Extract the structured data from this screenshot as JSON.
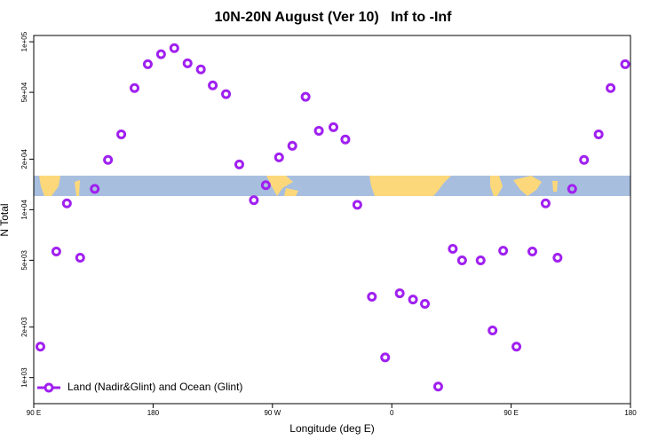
{
  "chart_data": {
    "type": "scatter",
    "title": "10N-20N August (Ver 10)   Inf to -Inf",
    "xlabel": "Longitude (deg E)",
    "ylabel": "N Total",
    "xlim": [
      90,
      540
    ],
    "xticks": [
      {
        "value": 90,
        "label": "90 E"
      },
      180,
      {
        "value": 270,
        "label": "90 W"
      },
      {
        "value": 360,
        "label": "0"
      },
      {
        "value": 450,
        "label": "90 E"
      },
      {
        "value": 540,
        "label": "180"
      }
    ],
    "ylim": [
      700,
      109000
    ],
    "ylog": true,
    "yticks": [
      {
        "value": 1000,
        "label": "1e+03"
      },
      {
        "value": 2000,
        "label": "2e+03"
      },
      {
        "value": 5000,
        "label": "5e+03"
      },
      {
        "value": 10000,
        "label": "1e+04"
      },
      {
        "value": 20000,
        "label": "2e+04"
      },
      {
        "value": 50000,
        "label": "5e+04"
      },
      {
        "value": 100000,
        "label": "1e+05"
      }
    ],
    "legend": "bottom-left",
    "series": [
      {
        "name": "Land (Nadir&Glint) and Ocean (Glint)",
        "color": "#a020f0",
        "x": [
          95,
          107,
          115,
          125,
          136,
          146,
          156,
          166,
          176,
          186,
          196,
          206,
          216,
          225,
          235,
          245,
          256,
          265,
          275,
          285,
          295,
          305,
          316,
          325,
          334,
          345,
          355,
          366,
          376,
          385,
          395,
          406,
          413,
          427,
          436,
          444,
          454,
          466,
          476,
          485,
          496,
          505,
          516,
          525,
          536
        ],
        "values": [
          1530,
          5640,
          10900,
          5180,
          13300,
          19800,
          28100,
          53000,
          73500,
          84300,
          91600,
          74400,
          68500,
          55000,
          48800,
          18600,
          11400,
          14000,
          20500,
          24000,
          47000,
          29500,
          31000,
          26200,
          10700,
          3030,
          1320,
          3180,
          2920,
          2750,
          885,
          5850,
          4990,
          4990,
          1910,
          5700,
          1530,
          5640,
          10900,
          5180,
          13300,
          19800,
          28100,
          53000,
          73500
        ]
      }
    ]
  }
}
